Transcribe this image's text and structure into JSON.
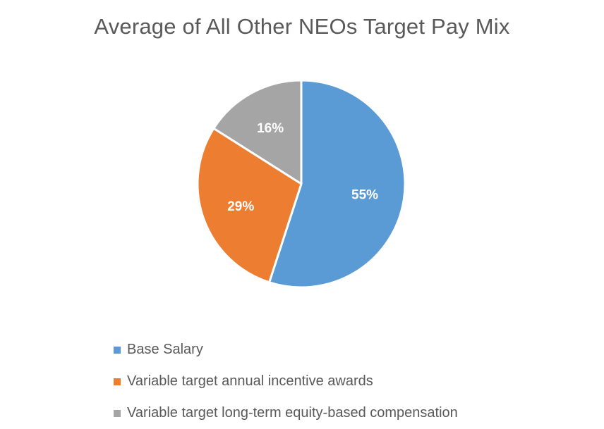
{
  "chart_data": {
    "type": "pie",
    "title": "Average of All Other NEOs Target Pay Mix",
    "categories": [
      "Base Salary",
      "Variable target annual incentive awards",
      "Variable target long-term equity-based compensation"
    ],
    "values": [
      55,
      29,
      16
    ],
    "labels": [
      "55%",
      "29%",
      "16%"
    ],
    "colors": [
      "#5B9BD5",
      "#ED7D31",
      "#A5A5A5"
    ],
    "legend_position": "bottom",
    "start_angle": 0,
    "direction": "clockwise"
  },
  "title": "Average of All Other NEOs Target Pay Mix",
  "legend": {
    "items": [
      {
        "label": "Base Salary",
        "color": "#5B9BD5"
      },
      {
        "label": "Variable target annual incentive awards",
        "color": "#ED7D31"
      },
      {
        "label": "Variable target long-term equity-based compensation",
        "color": "#A5A5A5"
      }
    ]
  },
  "slices": [
    {
      "label": "55%"
    },
    {
      "label": "29%"
    },
    {
      "label": "16%"
    }
  ]
}
